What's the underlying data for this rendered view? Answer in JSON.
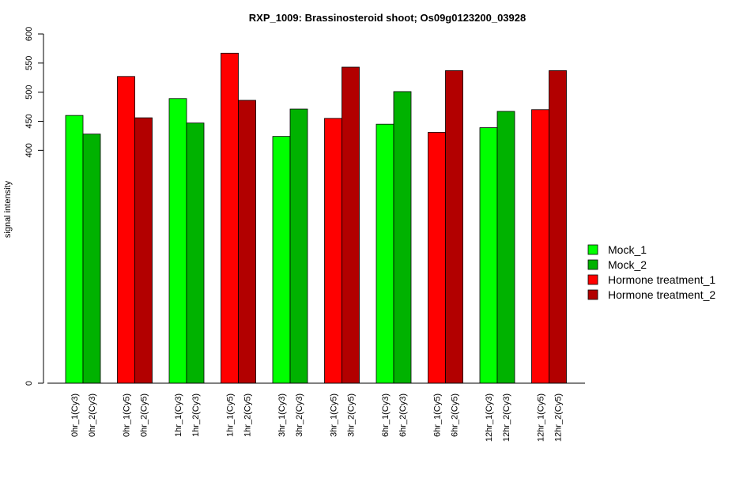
{
  "chart_data": {
    "type": "bar",
    "title": "RXP_1009: Brassinosteroid shoot; Os09g0123200_03928",
    "xlabel": "",
    "ylabel": "signal intensity",
    "ylim": [
      0,
      600
    ],
    "y_ticks": [
      0,
      400,
      450,
      500,
      550,
      600
    ],
    "y_tick_labels": [
      "0",
      "400",
      "450",
      "500",
      "550",
      "600"
    ],
    "grid": false,
    "legend_position": "right",
    "categories": [
      "0hr_1(Cy3)",
      "0hr_2(Cy3)",
      "0hr_1(Cy5)",
      "0hr_2(Cy5)",
      "1hr_1(Cy3)",
      "1hr_2(Cy3)",
      "1hr_1(Cy5)",
      "1hr_2(Cy5)",
      "3hr_1(Cy3)",
      "3hr_2(Cy3)",
      "3hr_1(Cy5)",
      "3hr_2(Cy5)",
      "6hr_1(Cy3)",
      "6hr_2(Cy3)",
      "6hr_1(Cy5)",
      "6hr_2(Cy5)",
      "12hr_1(Cy3)",
      "12hr_2(Cy3)",
      "12hr_1(Cy5)",
      "12hr_2(Cy5)"
    ],
    "values": [
      460,
      428,
      527,
      456,
      489,
      447,
      567,
      486,
      424,
      471,
      455,
      543,
      445,
      501,
      431,
      537,
      439,
      467,
      470,
      537
    ],
    "bar_series": [
      0,
      1,
      2,
      3,
      0,
      1,
      2,
      3,
      0,
      1,
      2,
      3,
      0,
      1,
      2,
      3,
      0,
      1,
      2,
      3
    ],
    "series": [
      {
        "name": "Mock_1",
        "color": "#00ff00"
      },
      {
        "name": "Mock_2",
        "color": "#00b200"
      },
      {
        "name": "Hormone treatment_1",
        "color": "#ff0000"
      },
      {
        "name": "Hormone treatment_2",
        "color": "#b20000"
      }
    ]
  }
}
